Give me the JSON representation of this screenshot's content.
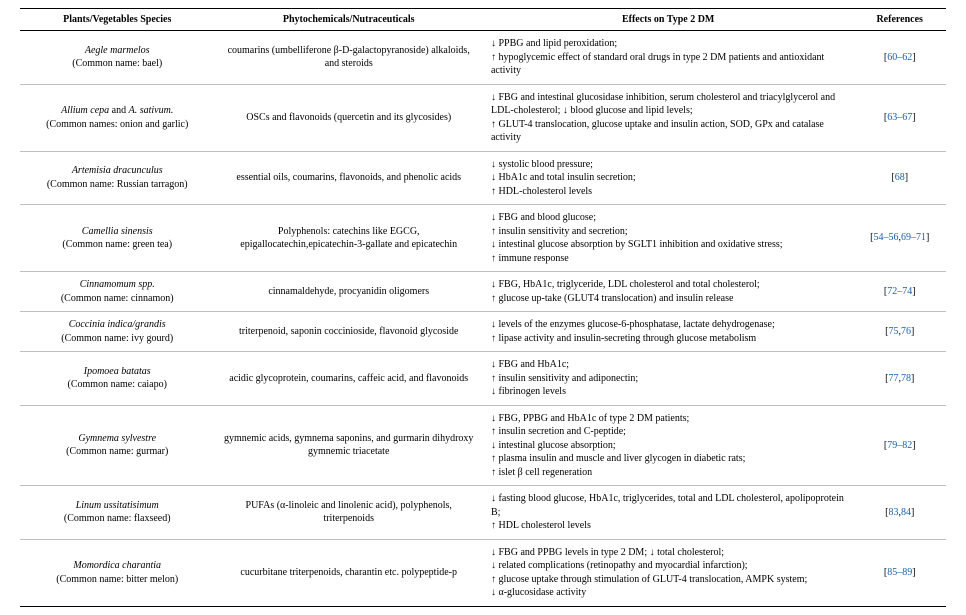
{
  "columns": [
    "Plants/Vegetables Species",
    "Phytochemicals/Nutraceuticals",
    "Effects on Type 2 DM",
    "References"
  ],
  "rows": [
    {
      "species_latin": "Aegle marmelos",
      "species_common": "(Common name: bael)",
      "phyto": "coumarins (umbelliferone β-D-galactopyranoside) alkaloids, and steroids",
      "effects": "↓ PPBG and lipid peroxidation;\n↑ hypoglycemic effect of standard oral drugs in type 2 DM patients and antioxidant activity",
      "refs": "[60–62]"
    },
    {
      "species_latin": "Allium cepa and A. sativum.",
      "species_common": "(Common names: onion and garlic)",
      "phyto": "OSCs and flavonoids (quercetin and its glycosides)",
      "effects": "↓ FBG and intestinal glucosidase inhibition, serum cholesterol and triacylglycerol and LDL-cholesterol; ↓ blood glucose and lipid levels;\n↑ GLUT-4 translocation, glucose uptake and insulin action, SOD, GPx and catalase activity",
      "refs": "[63–67]"
    },
    {
      "species_latin": "Artemisia dracunculus",
      "species_common": "(Common name: Russian tarragon)",
      "phyto": "essential oils, coumarins, flavonoids, and phenolic acids",
      "effects": "↓ systolic blood pressure;\n↓ HbA1c and total insulin secretion;\n↑ HDL-cholesterol levels",
      "refs": "[68]"
    },
    {
      "species_latin": "Camellia sinensis",
      "species_common": "(Common name: green tea)",
      "phyto": "Polyphenols: catechins like EGCG, epigallocatechin,epicatechin-3-gallate and epicatechin",
      "effects": "↓ FBG and blood glucose;\n↑ insulin sensitivity and secretion;\n↓ intestinal glucose absorption by SGLT1 inhibition and oxidative stress;\n↑ immune response",
      "refs": "[54–56,69–71]"
    },
    {
      "species_latin": "Cinnamomum spp.",
      "species_common": "(Common name: cinnamon)",
      "phyto": "cinnamaldehyde, procyanidin oligomers",
      "effects": "↓ FBG, HbA1c, triglyceride, LDL cholesterol and total cholesterol;\n↑ glucose up-take (GLUT4 translocation) and insulin release",
      "refs": "[72–74]"
    },
    {
      "species_latin": "Coccinia indica/grandis",
      "species_common": "(Common name: ivy gourd)",
      "phyto": "triterpenoid, saponin coccinioside, flavonoid glycoside",
      "effects": "↓ levels of the enzymes glucose-6-phosphatase, lactate dehydrogenase;\n↑ lipase activity and insulin-secreting through glucose metabolism",
      "refs": "[75,76]"
    },
    {
      "species_latin": "Ipomoea batatas",
      "species_common": "(Common name: caiapo)",
      "phyto": "acidic glycoprotein, coumarins, caffeic acid, and flavonoids",
      "effects": "↓ FBG and HbA1c;\n↑ insulin sensitivity and adiponectin;\n↓ fibrinogen levels",
      "refs": "[77,78]"
    },
    {
      "species_latin": "Gymnema sylvestre",
      "species_common": "(Common name: gurmar)",
      "phyto": "gymnemic acids, gymnema saponins, and gurmarin dihydroxy gymnemic triacetate",
      "effects": "↓ FBG, PPBG and HbA1c of type 2 DM patients;\n↑ insulin secretion and C-peptide;\n↓ intestinal glucose absorption;\n↑ plasma insulin and muscle and liver glycogen in diabetic rats;\n↑ islet β cell regeneration",
      "refs": "[79–82]"
    },
    {
      "species_latin": "Linum ussitatisimum",
      "species_common": "(Common name: flaxseed)",
      "phyto": "PUFAs (α-linoleic and linolenic acid), polyphenols, triterpenoids",
      "effects": "↓ fasting blood glucose, HbA1c, triglycerides, total and LDL cholesterol, apolipoprotein B;\n↑ HDL cholesterol levels",
      "refs": "[83,84]"
    },
    {
      "species_latin": "Momordica charantia",
      "species_common": "(Common name: bitter melon)",
      "phyto": "cucurbitane triterpenoids, charantin etc. polypeptide-p",
      "effects": "↓ FBG and PPBG levels in type 2 DM; ↓ total cholesterol;\n↓ related complications (retinopathy and myocardial infarction);\n↑ glucose uptake through stimulation of GLUT-4 translocation, AMPK system;\n↓ α-glucosidase activity",
      "refs": "[85–89]"
    }
  ]
}
